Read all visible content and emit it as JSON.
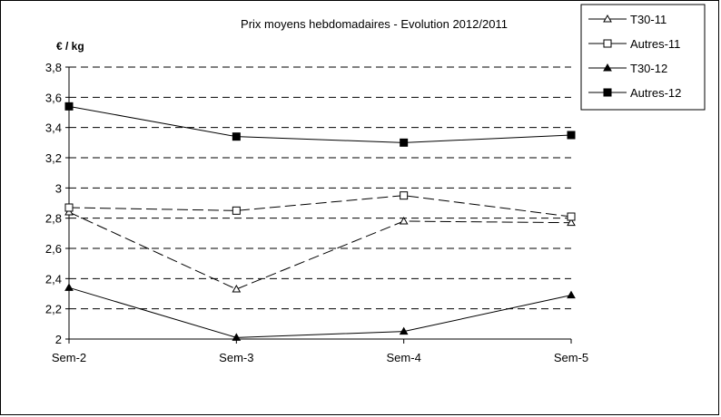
{
  "chart_data": {
    "type": "line",
    "title": "Prix moyens hebdomadaires - Evolution  2012/2011",
    "ylabel": "€ / kg",
    "xlabel": "",
    "categories": [
      "Sem-2",
      "Sem-3",
      "Sem-4",
      "Sem-5"
    ],
    "ylim": [
      2,
      3.8
    ],
    "yticks": [
      "3,8",
      "3,6",
      "3,4",
      "3,2",
      "3",
      "2,8",
      "2,6",
      "2,4",
      "2,2",
      "2"
    ],
    "grid": "horizontal dashed",
    "legend_position": "top-right",
    "series": [
      {
        "name": "T30-11",
        "values": [
          2.84,
          2.33,
          2.78,
          2.77
        ],
        "marker": "triangle-open",
        "line": "long-dash",
        "color": "#000000"
      },
      {
        "name": "Autres-11",
        "values": [
          2.87,
          2.85,
          2.95,
          2.81
        ],
        "marker": "square-open",
        "line": "long-dash",
        "color": "#000000"
      },
      {
        "name": "T30-12",
        "values": [
          2.34,
          2.01,
          2.05,
          2.29
        ],
        "marker": "triangle-filled",
        "line": "solid",
        "color": "#000000"
      },
      {
        "name": "Autres-12",
        "values": [
          3.54,
          3.34,
          3.3,
          3.35
        ],
        "marker": "square-filled",
        "line": "solid",
        "color": "#000000"
      }
    ]
  }
}
